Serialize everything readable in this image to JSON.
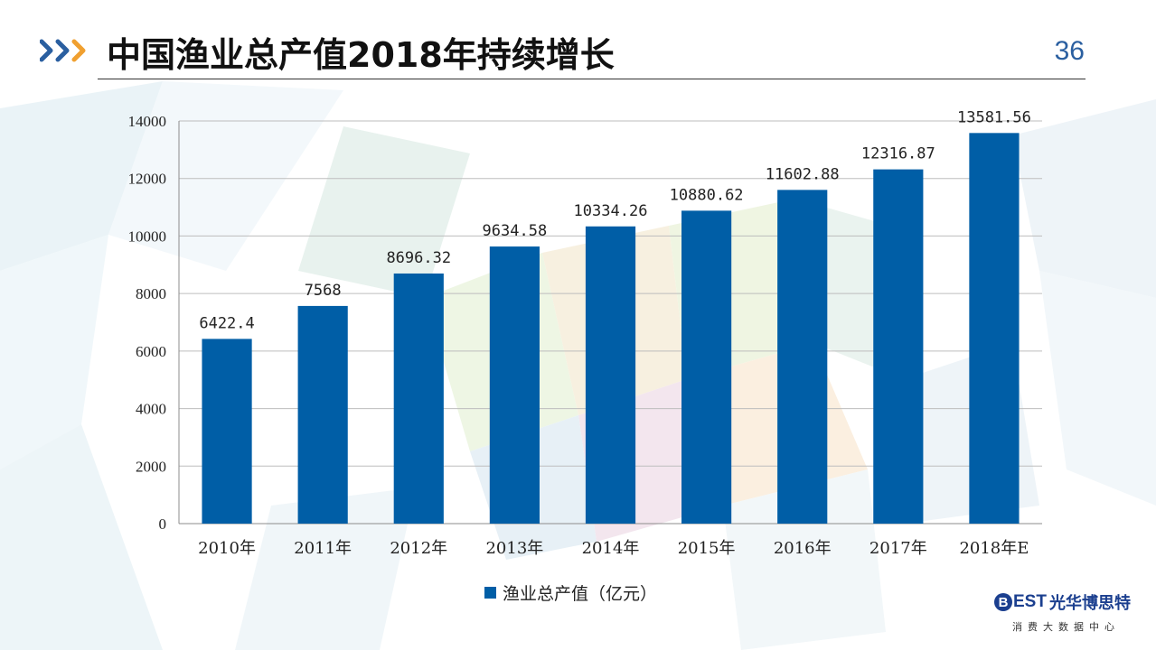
{
  "header": {
    "title": "中国渔业总产值2018年持续增长",
    "page_number": "36"
  },
  "colors": {
    "bar": "#005ea6",
    "chevron_blue": "#2a5fa0",
    "chevron_orange": "#f0a030",
    "grid": "#bdbdbd"
  },
  "chart_data": {
    "type": "bar",
    "categories": [
      "2010年",
      "2011年",
      "2012年",
      "2013年",
      "2014年",
      "2015年",
      "2016年",
      "2017年",
      "2018年E"
    ],
    "series": [
      {
        "name": "渔业总产值（亿元）",
        "values": [
          6422.4,
          7568,
          8696.32,
          9634.58,
          10334.26,
          10880.62,
          11602.88,
          12316.87,
          13581.56
        ],
        "labels": [
          "6422.4",
          "7568",
          "8696.32",
          "9634.58",
          "10334.26",
          "10880.62",
          "11602.88",
          "12316.87",
          "13581.56"
        ]
      }
    ],
    "ylim": [
      0,
      14000
    ],
    "yticks": [
      "0",
      "2000",
      "4000",
      "6000",
      "8000",
      "10000",
      "12000",
      "14000"
    ],
    "grid": true,
    "legend_position": "bottom"
  },
  "legend": {
    "label": "渔业总产值（亿元）"
  },
  "logo": {
    "letter": "B",
    "text": "EST",
    "cn_name": "光华博思特",
    "subtitle": "消费大数据中心"
  }
}
